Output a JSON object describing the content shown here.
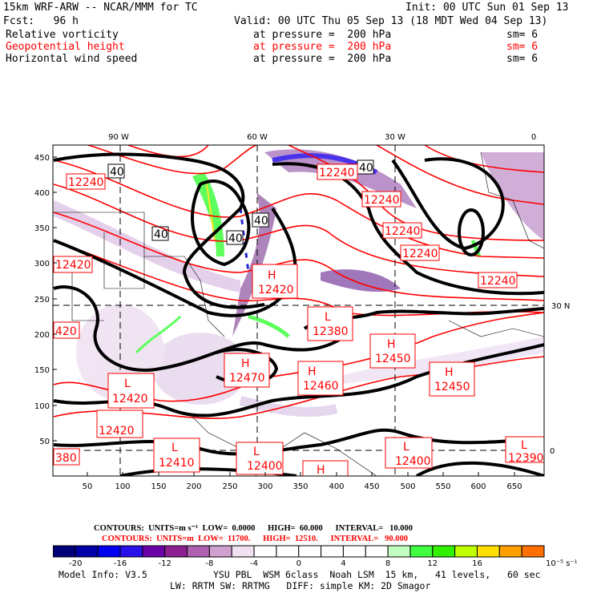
{
  "header": {
    "model": "15km WRF-ARW -- NCAR/MMM for TC",
    "init": "Init: 00 UTC Sun 01 Sep 13",
    "fcst": "Fcst:   96 h",
    "valid": "Valid: 00 UTC Thu 05 Sep 13 (18 MDT Wed 04 Sep 13)",
    "fields": [
      {
        "name": "Relative vorticity",
        "level": "at pressure =  200 hPa",
        "sm": "sm= 6",
        "color": "#000000"
      },
      {
        "name": "Geopotential height",
        "level": "at pressure =  200 hPa",
        "sm": "sm= 6",
        "color": "#ff0000"
      },
      {
        "name": "Horizontal wind speed",
        "level": "at pressure =  200 hPa",
        "sm": "sm= 6",
        "color": "#000000"
      }
    ]
  },
  "map": {
    "lon_labels": [
      "90 W",
      "60 W",
      "30 W",
      "0"
    ],
    "lat_labels": [
      "30 N",
      "0"
    ],
    "x_ticks": [
      "50",
      "100",
      "150",
      "200",
      "250",
      "300",
      "350",
      "400",
      "450",
      "500",
      "550",
      "600",
      "650"
    ],
    "y_ticks": [
      "50",
      "100",
      "150",
      "200",
      "250",
      "300",
      "350",
      "400",
      "450"
    ],
    "height_labels": [
      "12240",
      "12240",
      "12240",
      "12240",
      "12240",
      "12240",
      "12420",
      "380",
      "420"
    ],
    "wind_labels": [
      "40",
      "40",
      "40",
      "40",
      "40"
    ],
    "centers": [
      {
        "type": "H",
        "value": "12420"
      },
      {
        "type": "L",
        "value": "12380"
      },
      {
        "type": "H",
        "value": "12450"
      },
      {
        "type": "H",
        "value": "12470"
      },
      {
        "type": "H",
        "value": "12460"
      },
      {
        "type": "H",
        "value": "12450"
      },
      {
        "type": "L",
        "value": "12420"
      },
      {
        "type": "L",
        "value": "12410"
      },
      {
        "type": "L",
        "value": "12400"
      },
      {
        "type": "L",
        "value": "12400"
      },
      {
        "type": "L",
        "value": "12390"
      },
      {
        "type": "H",
        "value": ""
      }
    ]
  },
  "legend": {
    "contours_black": "CONTOURS:  UNITS=m s⁻¹  LOW=  0.0000      HIGH=  60.000      INTERVAL=   10.000",
    "contours_red": "CONTOURS:  UNITS=m  LOW=  11700.      HIGH=  12510.      INTERVAL=   90.000",
    "colorbar_colors": [
      "#00007a",
      "#0000a8",
      "#0000f0",
      "#2a10e8",
      "#6a00a8",
      "#8c2090",
      "#b060b0",
      "#d0a0d0",
      "#f0e0f0",
      "#ffffff",
      "#ffffff",
      "#ffffff",
      "#ffffff",
      "#ffffff",
      "#ffffff",
      "#c0ffc0",
      "#40ff40",
      "#30f000",
      "#c0ff00",
      "#ffe000",
      "#ffa000",
      "#ff7000"
    ],
    "colorbar_labels": [
      "-20",
      "-16",
      "-12",
      "-8",
      "-4",
      "0",
      "4",
      "8",
      "12",
      "16",
      "10⁻⁵ s⁻¹"
    ],
    "units": "10⁻⁵ s⁻¹"
  },
  "footer": {
    "line1_left": "Model Info: V3.5",
    "line1_right": "YSU PBL  WSM 6class  Noah LSM  15 km,   41 levels,   60 sec",
    "line2": "LW: RRTM SW: RRTMG   DIFF: simple KM: 2D Smagor"
  }
}
